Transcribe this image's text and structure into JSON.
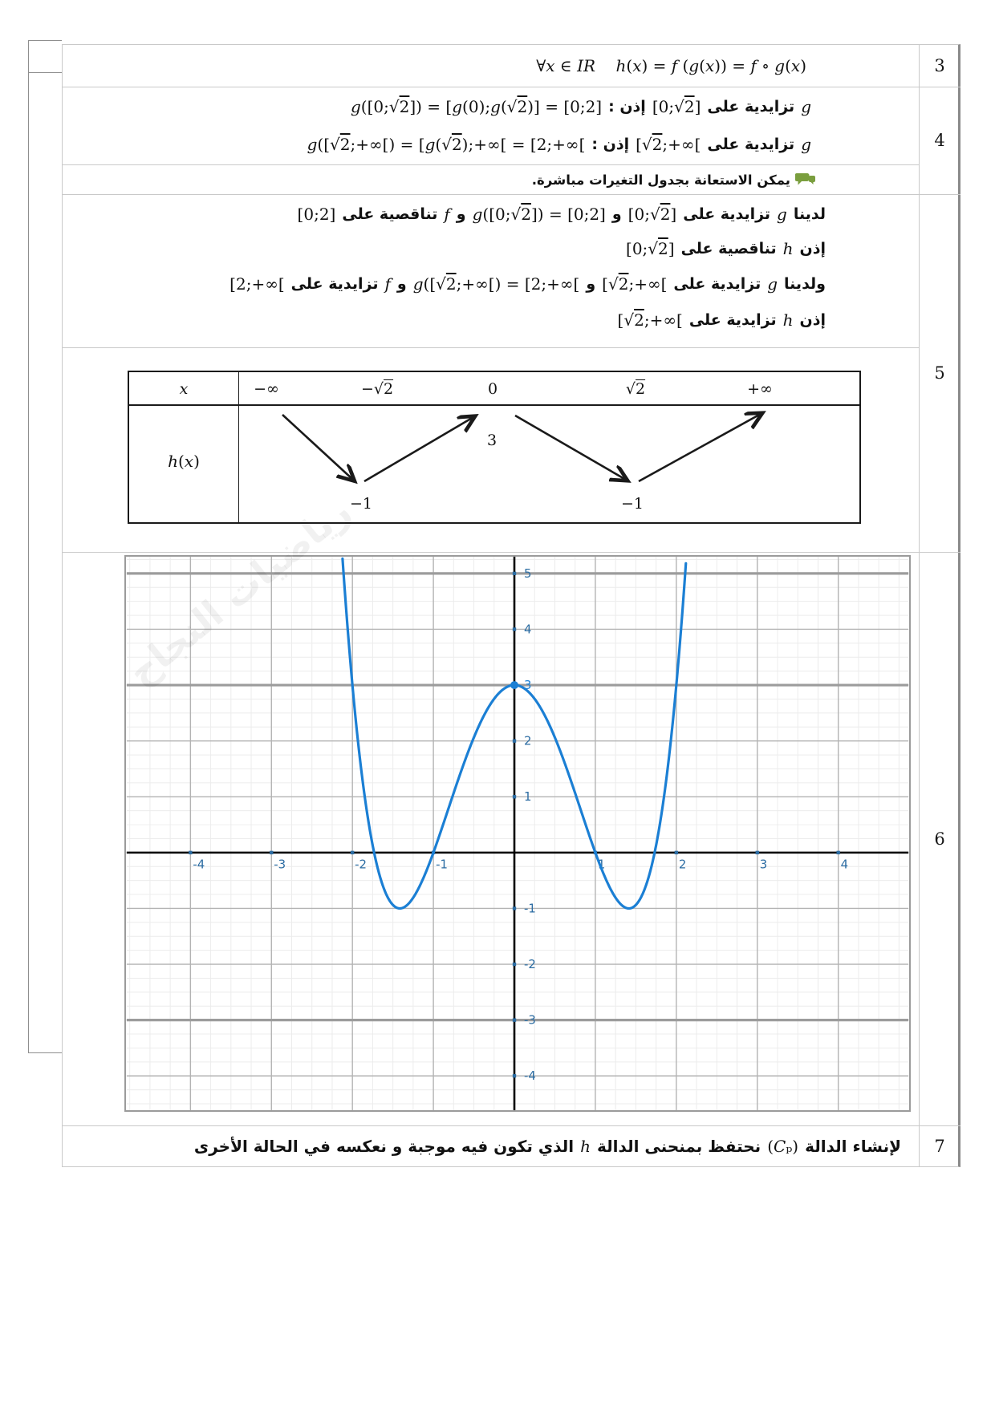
{
  "colors": {
    "curve_blue": "#1b7fd4",
    "tick_label_blue": "#2d6da3",
    "note_green": "#7a9e3e",
    "grid_major": "#b3b3b3",
    "grid_minor": "#ececec",
    "grid_thick": "#9c9c9c",
    "axis_black": "#000000"
  },
  "row_numbers": [
    "3",
    "4",
    "5",
    "6",
    "7"
  ],
  "r3": {
    "formula": "∀x ∈ IR    h(x) = f (g(x)) = f ∘ g(x)"
  },
  "r4": {
    "line1": [
      {
        "t": "m",
        "s": "g"
      },
      {
        "t": "a",
        "s": "تزايدية على"
      },
      {
        "t": "m",
        "s": "[0;√2]"
      },
      {
        "t": "a",
        "s": "إذن :"
      },
      {
        "t": "m",
        "s": "g([0;√2]) = [g(0);g(√2)] = [0;2]"
      }
    ],
    "line2": [
      {
        "t": "m",
        "s": "g"
      },
      {
        "t": "a",
        "s": "تزايدية على"
      },
      {
        "t": "m",
        "s": "[√2;+∞["
      },
      {
        "t": "a",
        "s": "إذن :"
      },
      {
        "t": "m",
        "s": "g([√2;+∞[) = [g(√2);+∞[ = [2;+∞["
      }
    ]
  },
  "note": {
    "icon": "speech-bubbles-icon",
    "text": "يمكن الاستعانة بجدول التغيرات مباشرة."
  },
  "r5": {
    "lines": [
      [
        {
          "t": "a",
          "s": "لدينا"
        },
        {
          "t": "m",
          "s": "g"
        },
        {
          "t": "a",
          "s": "تزايدية على"
        },
        {
          "t": "m",
          "s": "[0;√2]"
        },
        {
          "t": "a",
          "s": "و"
        },
        {
          "t": "m",
          "s": "g([0;√2]) = [0;2]"
        },
        {
          "t": "a",
          "s": "و"
        },
        {
          "t": "m",
          "s": "f"
        },
        {
          "t": "a",
          "s": "تناقصية على"
        },
        {
          "t": "m",
          "s": "[0;2]"
        }
      ],
      [
        {
          "t": "a",
          "s": "إذن"
        },
        {
          "t": "m",
          "s": "h"
        },
        {
          "t": "a",
          "s": "تناقصية على"
        },
        {
          "t": "m",
          "s": "[0;√2]"
        }
      ],
      [
        {
          "t": "a",
          "s": "ولدينا"
        },
        {
          "t": "m",
          "s": "g"
        },
        {
          "t": "a",
          "s": "تزايدية على"
        },
        {
          "t": "m",
          "s": "[√2;+∞["
        },
        {
          "t": "a",
          "s": "و"
        },
        {
          "t": "m",
          "s": "g([√2;+∞[) = [2;+∞["
        },
        {
          "t": "a",
          "s": "و"
        },
        {
          "t": "m",
          "s": "f"
        },
        {
          "t": "a",
          "s": "تزايدية على"
        },
        {
          "t": "m",
          "s": "[2;+∞["
        }
      ],
      [
        {
          "t": "a",
          "s": "إذن"
        },
        {
          "t": "m",
          "s": "h"
        },
        {
          "t": "a",
          "s": "تزايدية على"
        },
        {
          "t": "m",
          "s": "[√2;+∞["
        }
      ]
    ]
  },
  "vtable": {
    "var_label": "x",
    "func_label": "h(x)",
    "x_values": [
      "−∞",
      "−√2",
      "0",
      "√2",
      "+∞"
    ],
    "arrows": [
      "decreasing",
      "increasing",
      "decreasing",
      "increasing"
    ],
    "max_value": "3",
    "min_value_left": "−1",
    "min_value_right": "−1"
  },
  "chart_data": {
    "type": "line",
    "title": "",
    "xlabel": "",
    "ylabel": "",
    "poly_coeffs": [
      3,
      0,
      -4,
      0,
      1
    ],
    "curve_domain": [
      -2.122,
      2.122
    ],
    "xlim": [
      -4.79,
      4.87
    ],
    "ylim": [
      -4.61,
      5.3
    ],
    "x_ticks": [
      -4,
      -3,
      -2,
      -1,
      1,
      2,
      3,
      4
    ],
    "y_ticks": [
      5,
      4,
      3,
      2,
      1,
      -1,
      -2,
      -3,
      -4
    ],
    "grid": {
      "minor_step": 0.25,
      "major_step": 1,
      "thick_y": [
        5,
        3,
        -3
      ],
      "grid_on": true
    },
    "marked_point": [
      0,
      3
    ],
    "key_points": {
      "maximum": [
        0,
        3
      ],
      "minima": [
        [
          -1.414,
          -1
        ],
        [
          1.414,
          -1
        ]
      ],
      "x_intercepts": [
        -1.732,
        -1,
        1,
        1.732
      ]
    },
    "legend": "none"
  },
  "watermark": {
    "text": "رياضيات النجاح"
  },
  "r7": {
    "segments": [
      {
        "t": "a",
        "s": "لإنشاء الدالة"
      },
      {
        "t": "m",
        "s": "(Cₚ)"
      },
      {
        "t": "a",
        "s": "نحتفظ بمنحنى الدالة"
      },
      {
        "t": "m",
        "s": "h"
      },
      {
        "t": "a",
        "s": "الذي تكون فيه موجبة و نعكسه في الحالة الأخرى"
      }
    ]
  }
}
